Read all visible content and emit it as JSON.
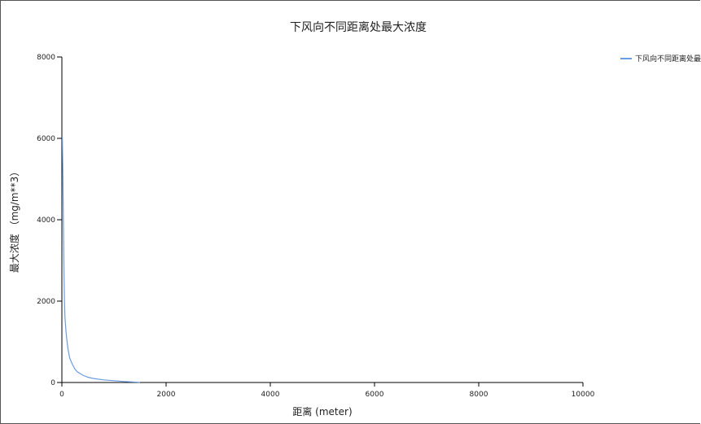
{
  "chart_data": {
    "type": "line",
    "title": "下风向不同距离处最大浓度",
    "xlabel": "距离 (meter)",
    "ylabel": "最大浓度 （mg/m**3）",
    "xlim": [
      0,
      10000
    ],
    "ylim": [
      0,
      8000
    ],
    "x_ticks": [
      0,
      2000,
      4000,
      6000,
      8000,
      10000
    ],
    "y_ticks": [
      0,
      2000,
      4000,
      6000,
      8000
    ],
    "grid": false,
    "legend_position": "top-right",
    "series": [
      {
        "name": "下风向不同距离处最大浓度",
        "color": "#6b9be0",
        "x": [
          10,
          20,
          30,
          40,
          50,
          60,
          80,
          100,
          120,
          150,
          200,
          250,
          300,
          400,
          500,
          600,
          800,
          1000,
          1200,
          1500
        ],
        "y": [
          6050,
          5000,
          3900,
          2700,
          2000,
          1600,
          1250,
          1000,
          800,
          600,
          450,
          330,
          260,
          180,
          130,
          100,
          65,
          45,
          25,
          5
        ]
      }
    ]
  }
}
